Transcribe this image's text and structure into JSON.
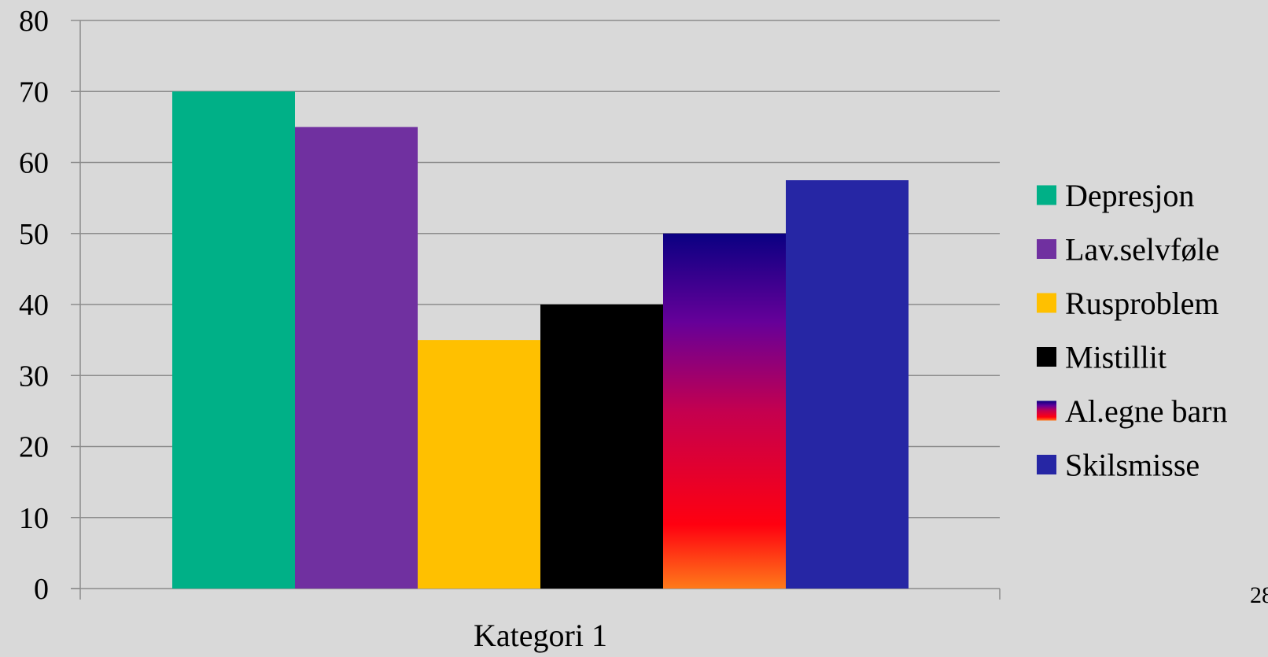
{
  "chart_data": {
    "type": "bar",
    "categories": [
      "Kategori 1"
    ],
    "series": [
      {
        "name": "Depresjon",
        "values": [
          70
        ],
        "color": "#00b087"
      },
      {
        "name": "Lav.selvføle",
        "values": [
          65
        ],
        "color": "#7030a0"
      },
      {
        "name": "Rusproblem",
        "values": [
          35
        ],
        "color": "#ffc000"
      },
      {
        "name": "Mistillit",
        "values": [
          40
        ],
        "color": "#000000"
      },
      {
        "name": "Al.egne barn",
        "values": [
          50
        ],
        "color": "gradient",
        "gradient_colors": [
          "#0a0082",
          "#660099",
          "#c4004f",
          "#ff0010",
          "#ff7a1a"
        ]
      },
      {
        "name": "Skilsmisse",
        "values": [
          57.5
        ],
        "color": "#2626a4"
      }
    ],
    "ylim": [
      0,
      80
    ],
    "yticks": [
      0,
      10,
      20,
      30,
      40,
      50,
      60,
      70,
      80
    ],
    "grid": true,
    "legend": "right",
    "title": "",
    "xlabel": "",
    "ylabel": ""
  },
  "page_number": "28",
  "colors": {
    "background": "#d9d9d9",
    "gridline": "#8c8c8c",
    "axis": "#8c8c8c"
  }
}
